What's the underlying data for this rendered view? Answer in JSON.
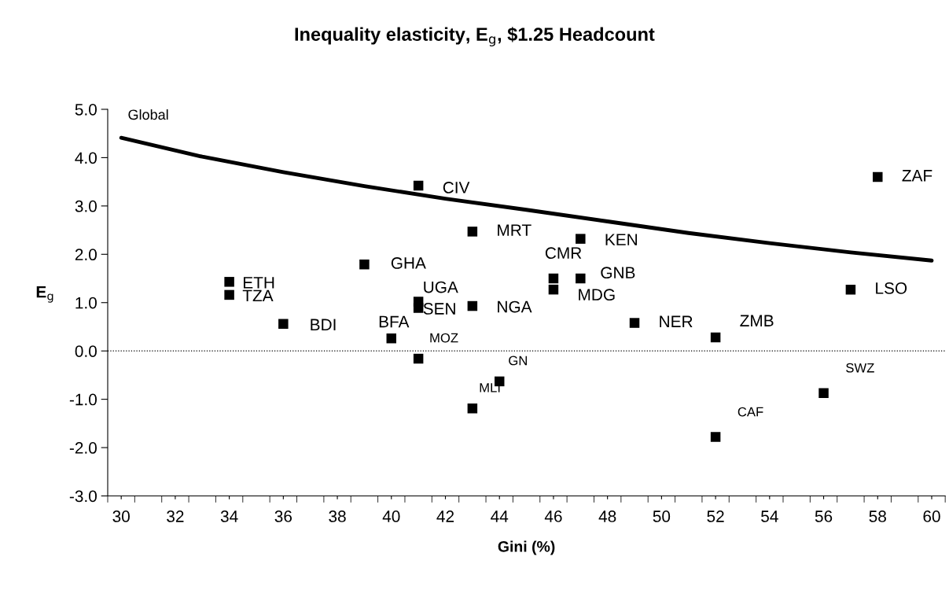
{
  "chart_data": {
    "type": "scatter",
    "title": "Inequality elasticity, E$_{g}$, $1.25 Headcount",
    "xlabel": "Gini (%)",
    "ylabel": "E$_{g}$",
    "xlim": [
      29.5,
      60.5
    ],
    "ylim": [
      -3.0,
      5.0
    ],
    "xticks": [
      {
        "value": 30,
        "label": "30"
      },
      {
        "value": 32,
        "label": "32"
      },
      {
        "value": 34,
        "label": "34"
      },
      {
        "value": 36,
        "label": "36"
      },
      {
        "value": 38,
        "label": "38"
      },
      {
        "value": 40,
        "label": "40"
      },
      {
        "value": 42,
        "label": "42"
      },
      {
        "value": 44,
        "label": "44"
      },
      {
        "value": 46,
        "label": "46"
      },
      {
        "value": 48,
        "label": "48"
      },
      {
        "value": 50,
        "label": "50"
      },
      {
        "value": 52,
        "label": "52"
      },
      {
        "value": 54,
        "label": "54"
      },
      {
        "value": 56,
        "label": "56"
      },
      {
        "value": 58,
        "label": "58"
      },
      {
        "value": 60,
        "label": "60"
      },
      {
        "value": 29.5,
        "label": null
      },
      {
        "value": 30.5,
        "label": null
      },
      {
        "value": 31.5,
        "label": null
      },
      {
        "value": 32.5,
        "label": null
      },
      {
        "value": 33.5,
        "label": null
      },
      {
        "value": 34.5,
        "label": null
      },
      {
        "value": 35.5,
        "label": null
      },
      {
        "value": 36.5,
        "label": null
      },
      {
        "value": 37.5,
        "label": null
      },
      {
        "value": 38.5,
        "label": null
      },
      {
        "value": 39.5,
        "label": null
      },
      {
        "value": 40.5,
        "label": null
      },
      {
        "value": 41.5,
        "label": null
      },
      {
        "value": 42.5,
        "label": null
      },
      {
        "value": 43.5,
        "label": null
      },
      {
        "value": 44.5,
        "label": null
      },
      {
        "value": 45.5,
        "label": null
      },
      {
        "value": 46.5,
        "label": null
      },
      {
        "value": 47.5,
        "label": null
      },
      {
        "value": 48.5,
        "label": null
      },
      {
        "value": 49.5,
        "label": null
      },
      {
        "value": 50.5,
        "label": null
      },
      {
        "value": 51.5,
        "label": null
      },
      {
        "value": 52.5,
        "label": null
      },
      {
        "value": 53.5,
        "label": null
      },
      {
        "value": 54.5,
        "label": null
      },
      {
        "value": 55.5,
        "label": null
      },
      {
        "value": 56.5,
        "label": null
      },
      {
        "value": 57.5,
        "label": null
      },
      {
        "value": 58.5,
        "label": null
      },
      {
        "value": 59.5,
        "label": null
      },
      {
        "value": 60.5,
        "label": null
      }
    ],
    "yticks": [
      {
        "value": -3,
        "label": "-3.0"
      },
      {
        "value": -2,
        "label": "-2.0"
      },
      {
        "value": -1,
        "label": "-1.0"
      },
      {
        "value": 0,
        "label": "0.0"
      },
      {
        "value": 1,
        "label": "1.0"
      },
      {
        "value": 2,
        "label": "2.0"
      },
      {
        "value": 3,
        "label": "3.0"
      },
      {
        "value": 4,
        "label": "4.0"
      },
      {
        "value": 5,
        "label": "5.0"
      }
    ],
    "grid": false,
    "legend": false,
    "ref_lines": [
      {
        "axis": "y",
        "value": 0,
        "color": "#000000",
        "line_style": "dotted"
      }
    ],
    "series": [
      {
        "name": "Global",
        "type": "line",
        "color": "#000000",
        "marker": "none",
        "line_style": "solid",
        "x": [
          30,
          33,
          36,
          39,
          42,
          45,
          48,
          51,
          54,
          57,
          60
        ],
        "values": [
          4.41,
          4.02,
          3.7,
          3.41,
          3.15,
          2.92,
          2.68,
          2.44,
          2.23,
          2.04,
          1.87
        ]
      },
      {
        "type": "scatter",
        "color": "#000000",
        "marker": "square",
        "x": [
          34,
          34,
          36,
          39,
          40,
          41,
          41,
          41,
          41,
          43,
          43,
          43,
          44,
          46,
          46,
          47,
          47,
          49,
          52,
          52,
          56,
          57,
          58
        ],
        "values": [
          1.43,
          1.16,
          0.56,
          1.79,
          0.26,
          3.42,
          1.02,
          0.89,
          -0.16,
          2.47,
          0.93,
          -1.19,
          -0.63,
          1.5,
          1.27,
          2.32,
          1.5,
          0.58,
          0.28,
          -1.78,
          -0.87,
          1.27,
          3.6
        ]
      }
    ],
    "annotations": [
      {
        "text": "ETH",
        "x": 34,
        "y": 1.43
      },
      {
        "text": "TZA",
        "x": 34,
        "y": 1.16
      },
      {
        "text": "BDI",
        "x": 36,
        "y": 0.56
      },
      {
        "text": "GHA",
        "x": 39,
        "y": 1.79
      },
      {
        "text": "BFA",
        "x": 40,
        "y": 0.26
      },
      {
        "text": "CIV",
        "x": 41,
        "y": 3.42
      },
      {
        "text": "UGA",
        "x": 41,
        "y": 1.02
      },
      {
        "text": "SEN",
        "x": 41,
        "y": 0.89
      },
      {
        "text": "MOZ",
        "x": 41,
        "y": -0.16
      },
      {
        "text": "MRT",
        "x": 43,
        "y": 2.47
      },
      {
        "text": "NGA",
        "x": 43,
        "y": 0.93
      },
      {
        "text": "MLI",
        "x": 43,
        "y": -1.19
      },
      {
        "text": "GN",
        "x": 44,
        "y": -0.63
      },
      {
        "text": "CMR",
        "x": 46,
        "y": 1.5
      },
      {
        "text": "MDG",
        "x": 46,
        "y": 1.27
      },
      {
        "text": "KEN",
        "x": 47,
        "y": 2.32
      },
      {
        "text": "GNB",
        "x": 47,
        "y": 1.5
      },
      {
        "text": "NER",
        "x": 49,
        "y": 0.58
      },
      {
        "text": "ZMB",
        "x": 52,
        "y": 0.28
      },
      {
        "text": "CAF",
        "x": 52,
        "y": -1.78
      },
      {
        "text": "SWZ",
        "x": 56,
        "y": -0.87
      },
      {
        "text": "LSO",
        "x": 57,
        "y": 1.27
      },
      {
        "text": "ZAF",
        "x": 58,
        "y": 3.6
      }
    ]
  }
}
